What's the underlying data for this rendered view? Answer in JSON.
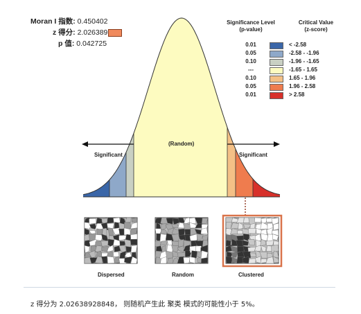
{
  "stats": {
    "moran_label": "Moran I 指数:",
    "moran_value": "0.450402",
    "z_label": "z 得分:",
    "z_value": "2.026389",
    "p_label": "p 值:",
    "p_value": "0.042725"
  },
  "legend": {
    "sig_header_1": "Significance Level",
    "sig_header_2": "(p-value)",
    "crit_header_1": "Critical Value",
    "crit_header_2": "(z-score)",
    "rows": [
      {
        "p": "0.01",
        "z": "< -2.58",
        "color": "#3a66a8"
      },
      {
        "p": "0.05",
        "z": "-2.58 - -1.96",
        "color": "#8ea8c9"
      },
      {
        "p": "0.10",
        "z": "-1.96 - -1.65",
        "color": "#c9d0c3"
      },
      {
        "p": "---",
        "z": "-1.65 - 1.65",
        "color": "#fdfbc0"
      },
      {
        "p": "0.10",
        "z": "1.65 - 1.96",
        "color": "#f4c086"
      },
      {
        "p": "0.05",
        "z": "1.96 - 2.58",
        "color": "#ef7c4e"
      },
      {
        "p": "0.01",
        "z": "> 2.58",
        "color": "#d7302a"
      }
    ]
  },
  "curve": {
    "random_label": "(Random)",
    "significant_left": "Significant",
    "significant_right": "Significant"
  },
  "patterns": {
    "dispersed": "Dispersed",
    "random": "Random",
    "clustered": "Clustered"
  },
  "caption": "z 得分为 2.02638928848， 则随机产生此 聚类 模式的可能性小于 5%。"
}
